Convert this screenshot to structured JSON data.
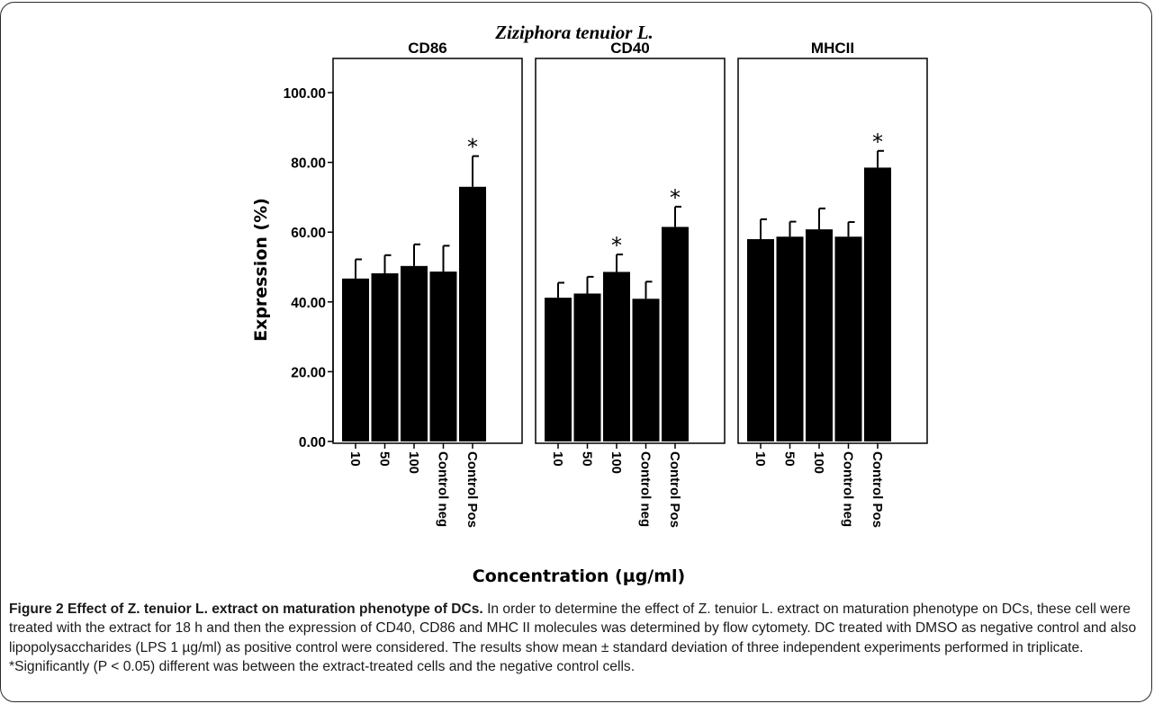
{
  "chart_data": {
    "type": "bar",
    "title": "Ziziphora tenuior L.",
    "xlabel": "Concentration (µg/ml)",
    "ylabel": "Expression (%)",
    "ylim": [
      0,
      100
    ],
    "yticks": [
      "0.00",
      "20.00",
      "40.00",
      "60.00",
      "80.00",
      "100.00"
    ],
    "categories": [
      "10",
      "50",
      "100",
      "Control neg",
      "Control Pos"
    ],
    "bar_color": "#000000",
    "significance_marker": "*",
    "panels": [
      {
        "name": "CD86",
        "values": [
          46.7,
          48.2,
          50.3,
          48.7,
          73.0
        ],
        "errors": [
          5.5,
          5.2,
          6.2,
          7.4,
          8.8
        ],
        "significant": [
          false,
          false,
          false,
          false,
          true
        ]
      },
      {
        "name": "CD40",
        "values": [
          41.2,
          42.4,
          48.6,
          40.9,
          61.5
        ],
        "errors": [
          4.3,
          4.8,
          5.0,
          4.9,
          5.8
        ],
        "significant": [
          false,
          false,
          true,
          false,
          true
        ]
      },
      {
        "name": "MHCII",
        "values": [
          58.0,
          58.7,
          60.8,
          58.7,
          78.5
        ],
        "errors": [
          5.7,
          4.3,
          6.0,
          4.2,
          4.8
        ],
        "significant": [
          false,
          false,
          false,
          false,
          true
        ]
      }
    ]
  },
  "caption": {
    "label": "Figure 2 Effect of Z. tenuior L. extract on maturation phenotype of DCs.",
    "text": " In order to determine the effect of Z. tenuior L. extract on maturation phenotype on DCs, these cell were treated with the extract for 18 h and then the expression of CD40, CD86 and MHC II molecules was determined by flow cytomety. DC treated with DMSO as negative control and also lipopolysaccharides (LPS 1 µg/ml) as positive control were considered. The results show mean ± standard deviation of three independent experiments performed in triplicate. *Significantly (P < 0.05) different was between the extract-treated cells and the negative control cells."
  }
}
